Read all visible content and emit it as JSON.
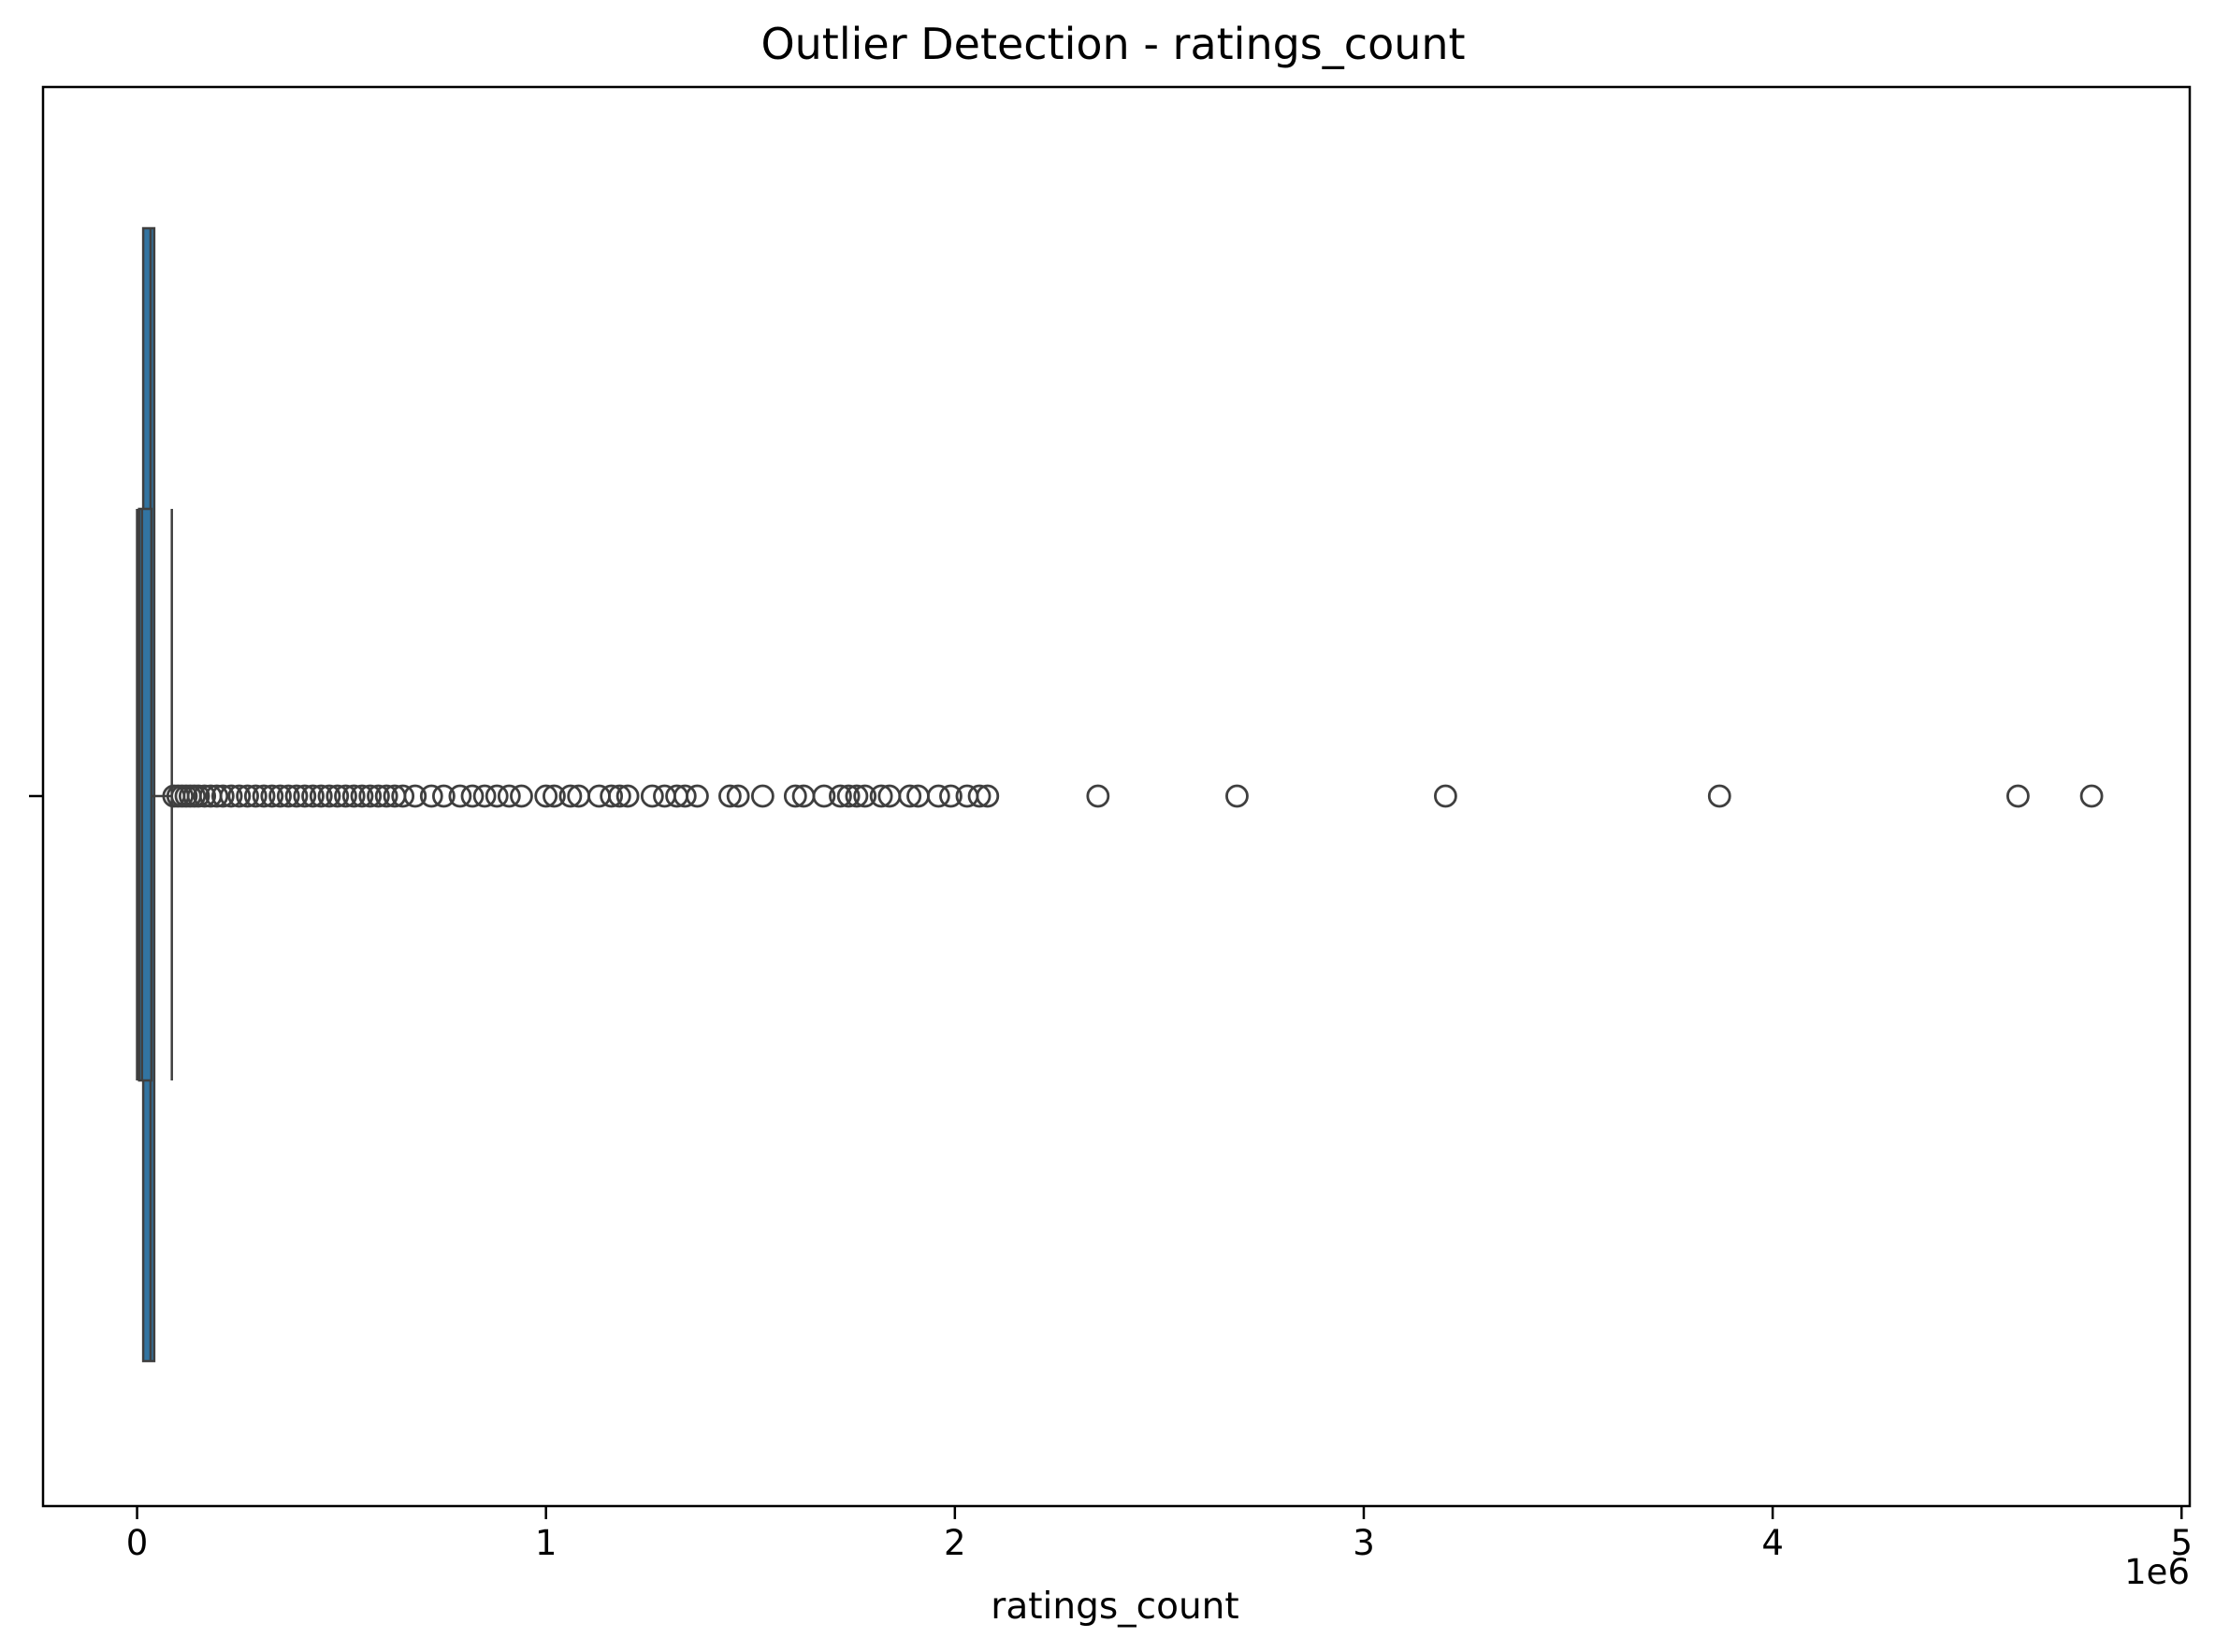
{
  "chart_data": {
    "type": "boxplot",
    "title": "Outlier Detection - ratings_count",
    "xlabel": "ratings_count",
    "ylabel": "",
    "x_offset_label": "1e6",
    "x_scale": 1000000,
    "xlim": [
      -230000,
      5020000
    ],
    "x_ticks": [
      0,
      1000000,
      2000000,
      3000000,
      4000000,
      5000000
    ],
    "x_tick_labels": [
      "0",
      "1",
      "2",
      "3",
      "4",
      "5"
    ],
    "grid": false,
    "legend": "none",
    "box_fill": "#3274a1",
    "element_color": "#3f3f3f",
    "series": [
      {
        "values": {
          "box_series_1": {
            "q1": 15000,
            "median": 33000,
            "q3": 42000
          },
          "box_series_2": {
            "whisker_low": 0,
            "q1": 5000,
            "median": 12000,
            "q3": 35000,
            "whisker_high": 85000
          }
        },
        "outliers": [
          90000,
          100000,
          110000,
          120000,
          130000,
          140000,
          150000,
          165000,
          180000,
          195000,
          210000,
          230000,
          250000,
          270000,
          290000,
          310000,
          330000,
          350000,
          370000,
          390000,
          410000,
          430000,
          450000,
          470000,
          490000,
          510000,
          530000,
          550000,
          570000,
          590000,
          610000,
          630000,
          650000,
          680000,
          720000,
          750000,
          790000,
          820000,
          850000,
          880000,
          910000,
          940000,
          1000000,
          1020000,
          1060000,
          1080000,
          1130000,
          1160000,
          1180000,
          1200000,
          1260000,
          1290000,
          1320000,
          1340000,
          1370000,
          1450000,
          1470000,
          1530000,
          1610000,
          1630000,
          1680000,
          1720000,
          1740000,
          1760000,
          1780000,
          1820000,
          1840000,
          1890000,
          1910000,
          1960000,
          1990000,
          2030000,
          2060000,
          2080000,
          2350000,
          2690000,
          3200000,
          3870000,
          4600000,
          4780000
        ]
      }
    ]
  }
}
